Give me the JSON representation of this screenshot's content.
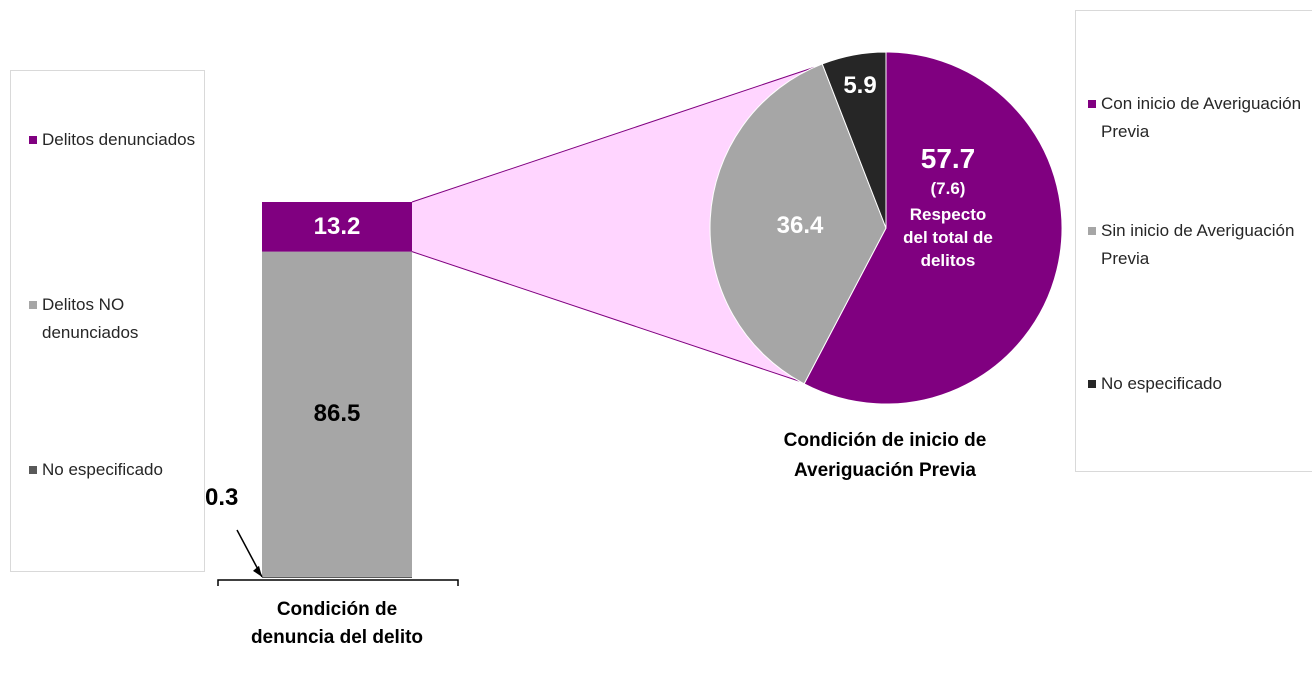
{
  "chart_data": [
    {
      "type": "stacked_bar",
      "categories": [
        "Condición de denuncia del delito"
      ],
      "series": [
        {
          "name": "Delitos denunciados",
          "color": "#800080",
          "values": [
            13.2
          ]
        },
        {
          "name": "Delitos NO denunciados",
          "color": "#a6a6a6",
          "values": [
            86.5
          ]
        },
        {
          "name": "No especificado",
          "color": "#595959",
          "values": [
            0.3
          ]
        }
      ]
    },
    {
      "type": "pie",
      "title": "Condición de inicio de Averiguación Previa",
      "categories": [
        "Con inicio de Averiguación Previa",
        "Sin inicio de Averiguación Previa",
        "No especificado"
      ],
      "values": [
        57.7,
        36.4,
        5.9
      ],
      "colors": [
        "#800080",
        "#a6a6a6",
        "#262626"
      ],
      "annotations": [
        "(7.6)",
        "Respecto del total de delitos"
      ]
    }
  ]
}
